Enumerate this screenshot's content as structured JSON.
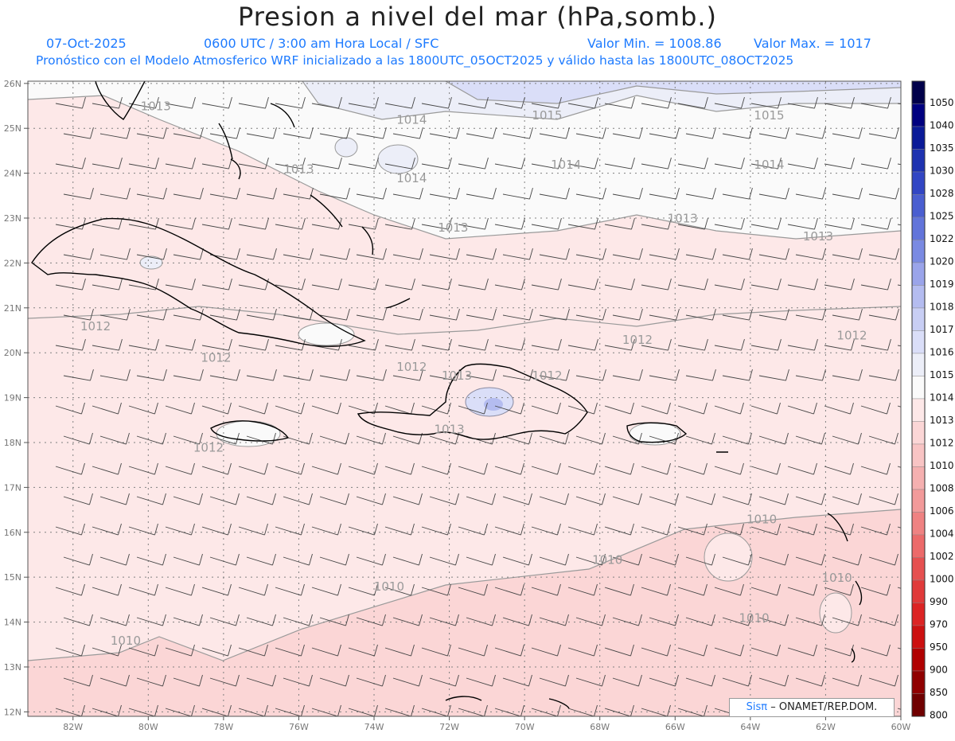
{
  "header": {
    "title": "Presion a nivel del mar (hPa,somb.)",
    "date": "07-Oct-2025",
    "time": "0600 UTC / 3:00 am Hora Local / SFC",
    "min_label": "Valor Min. = 1008.86",
    "max_label": "Valor Max. = 1017",
    "description": "Pronóstico con el Modelo Atmosferico WRF inicializado a las 1800UTC_05OCT2025 y válido hasta las  1800UTC_08OCT2025"
  },
  "axes": {
    "lat_labels": [
      "26N",
      "25N",
      "24N",
      "23N",
      "22N",
      "21N",
      "20N",
      "19N",
      "18N",
      "17N",
      "16N",
      "15N",
      "14N",
      "13N",
      "12N"
    ],
    "lon_labels": [
      "82W",
      "80W",
      "78W",
      "76W",
      "74W",
      "72W",
      "70W",
      "68W",
      "66W",
      "64W",
      "62W",
      "60W"
    ]
  },
  "contours": [
    {
      "label": "1013",
      "lon": -79.8,
      "lat": 25.4
    },
    {
      "label": "1014",
      "lon": -73.0,
      "lat": 25.1
    },
    {
      "label": "1015",
      "lon": -69.4,
      "lat": 25.2
    },
    {
      "label": "1015",
      "lon": -63.5,
      "lat": 25.2
    },
    {
      "label": "1014",
      "lon": -68.9,
      "lat": 24.1
    },
    {
      "label": "1014",
      "lon": -63.5,
      "lat": 24.1
    },
    {
      "label": "1014",
      "lon": -73.0,
      "lat": 23.8
    },
    {
      "label": "1013",
      "lon": -76.0,
      "lat": 24.0
    },
    {
      "label": "1013",
      "lon": -71.9,
      "lat": 22.7
    },
    {
      "label": "1013",
      "lon": -65.8,
      "lat": 22.9
    },
    {
      "label": "1013",
      "lon": -62.2,
      "lat": 22.5
    },
    {
      "label": "1012",
      "lon": -81.4,
      "lat": 20.5
    },
    {
      "label": "1012",
      "lon": -67.0,
      "lat": 20.2
    },
    {
      "label": "1012",
      "lon": -61.3,
      "lat": 20.3
    },
    {
      "label": "1012",
      "lon": -78.2,
      "lat": 19.8
    },
    {
      "label": "1012",
      "lon": -73.0,
      "lat": 19.6
    },
    {
      "label": "1013",
      "lon": -71.8,
      "lat": 19.4
    },
    {
      "label": "1012",
      "lon": -69.4,
      "lat": 19.4
    },
    {
      "label": "1013",
      "lon": -72.0,
      "lat": 18.2
    },
    {
      "label": "1012",
      "lon": -78.4,
      "lat": 17.8
    },
    {
      "label": "1010",
      "lon": -63.7,
      "lat": 16.2
    },
    {
      "label": "1010",
      "lon": -67.8,
      "lat": 15.3
    },
    {
      "label": "1010",
      "lon": -73.6,
      "lat": 14.7
    },
    {
      "label": "1010",
      "lon": -61.7,
      "lat": 14.9
    },
    {
      "label": "1010",
      "lon": -63.9,
      "lat": 14.0
    },
    {
      "label": "1010",
      "lon": -80.6,
      "lat": 13.5
    }
  ],
  "legend": {
    "levels": [
      "1050",
      "1040",
      "1035",
      "1030",
      "1028",
      "1025",
      "1022",
      "1020",
      "1019",
      "1018",
      "1017",
      "1016",
      "1015",
      "1014",
      "1013",
      "1012",
      "1010",
      "1008",
      "1006",
      "1004",
      "1002",
      "1000",
      "990",
      "970",
      "950",
      "900",
      "850",
      "800"
    ],
    "colors": [
      "#00004a",
      "#000080",
      "#0a1a98",
      "#1e32b0",
      "#3246c4",
      "#4a5ed0",
      "#6274da",
      "#7a8ae2",
      "#9aa4ea",
      "#b4bcf0",
      "#c8ceF4",
      "#dadef8",
      "#eceef8",
      "#fafafa",
      "#fde8e8",
      "#fbd6d6",
      "#f8c4c4",
      "#f5b0b0",
      "#f29a9a",
      "#ef8282",
      "#ec6a6a",
      "#e65050",
      "#e03a3a",
      "#dc2424",
      "#cc1010",
      "#b00000",
      "#900000",
      "#700000"
    ]
  },
  "credit": {
    "brand": "Sisπ",
    "text": "– ONAMET/REP.DOM."
  },
  "colors": {
    "info_text": "#1e7bff",
    "grid": "#808080",
    "coast": "#000000",
    "contour": "#9a9a9a",
    "barb": "#444444"
  }
}
